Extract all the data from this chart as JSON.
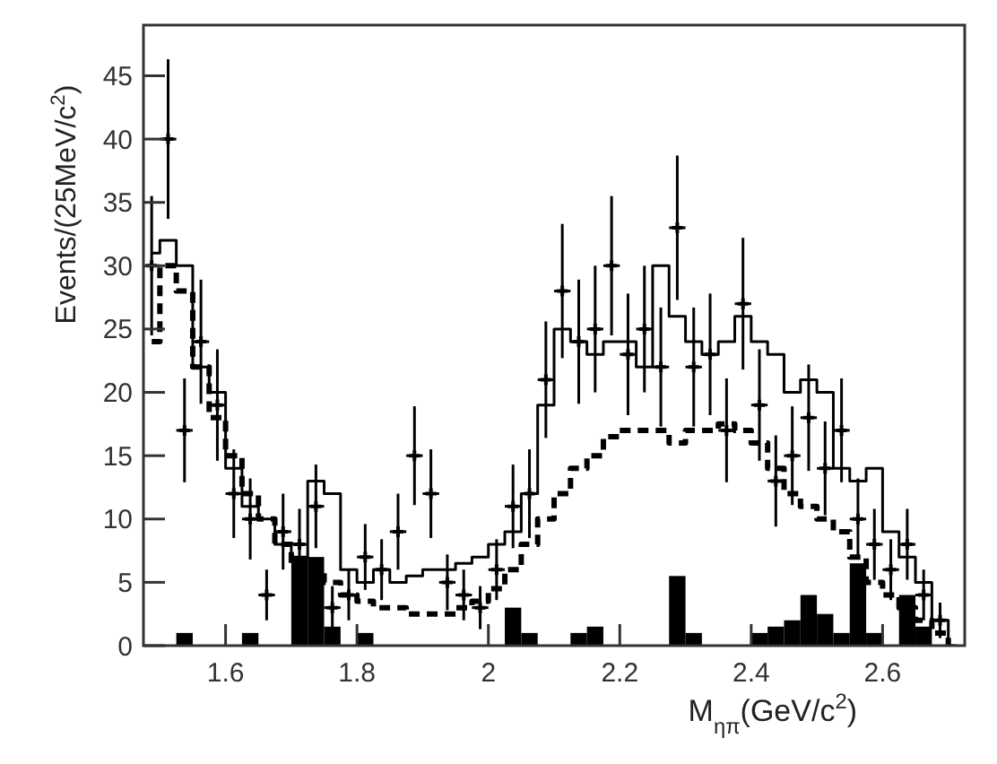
{
  "chart_data": {
    "type": "scatter",
    "xlabel": "M$_{ηπ}$(GeV/c$^{2}$)",
    "ylabel": "Events/(25MeV/c$^{2}$)",
    "xlim": [
      1.475,
      2.725
    ],
    "ylim": [
      0,
      49
    ],
    "xticks": [
      1.6,
      1.8,
      2,
      2.2,
      2.4,
      2.6
    ],
    "yticks": [
      0,
      5,
      10,
      15,
      20,
      25,
      30,
      35,
      40,
      45
    ],
    "grid": false,
    "x": [
      1.4875,
      1.5125,
      1.5375,
      1.5625,
      1.5875,
      1.6125,
      1.6375,
      1.6625,
      1.6875,
      1.7125,
      1.7375,
      1.7625,
      1.7875,
      1.8125,
      1.8375,
      1.8625,
      1.8875,
      1.9125,
      1.9375,
      1.9625,
      1.9875,
      2.0125,
      2.0375,
      2.0625,
      2.0875,
      2.1125,
      2.1375,
      2.1625,
      2.1875,
      2.2125,
      2.2375,
      2.2625,
      2.2875,
      2.3125,
      2.3375,
      2.3625,
      2.3875,
      2.4125,
      2.4375,
      2.4625,
      2.4875,
      2.5125,
      2.5375,
      2.5625,
      2.5875,
      2.6125,
      2.6375,
      2.6625,
      2.6875,
      2.7125
    ],
    "series": [
      {
        "type": "bar",
        "color": "#000000",
        "values": [
          0,
          0,
          1,
          0,
          0,
          0,
          1,
          0,
          0,
          7,
          7,
          1.5,
          0,
          1,
          0,
          0,
          0,
          0,
          0,
          0,
          0,
          0,
          3,
          1,
          0,
          0,
          1,
          1.5,
          0,
          0,
          0,
          0,
          5.5,
          1,
          0,
          0,
          0,
          1,
          1.5,
          2,
          4,
          2.5,
          1,
          6.5,
          1,
          0,
          4,
          1.5,
          0,
          0
        ]
      },
      {
        "type": "step",
        "color": "#000000",
        "line_style": "dashed",
        "values": [
          24,
          30,
          28,
          22,
          18,
          15,
          12,
          10,
          8,
          6,
          6,
          5,
          4,
          3.5,
          3,
          3,
          2.5,
          2.5,
          2.5,
          3,
          3.5,
          4.5,
          6,
          8,
          10,
          12,
          14,
          15,
          16.5,
          17,
          17,
          17,
          16,
          17,
          17,
          17.5,
          17,
          16,
          14,
          12,
          11,
          10,
          9,
          7,
          5,
          4,
          3,
          2,
          1,
          0
        ]
      },
      {
        "type": "step",
        "color": "#000000",
        "line_style": "solid",
        "values": [
          31,
          32,
          30,
          22,
          20,
          14,
          11,
          10,
          8,
          7,
          13,
          12,
          6,
          5,
          6,
          5,
          5.5,
          6,
          6,
          6.5,
          7,
          8,
          9,
          12,
          19,
          25,
          24,
          23,
          24,
          24,
          22,
          30,
          26,
          24,
          23,
          24,
          26,
          24,
          23,
          20,
          21,
          20,
          14,
          13,
          14,
          9,
          7,
          5,
          2,
          0
        ]
      },
      {
        "color": "#000000",
        "marker": "cross",
        "values": [
          30,
          40,
          17,
          24,
          19,
          12,
          10,
          4,
          9,
          8,
          11,
          3,
          4,
          7,
          6,
          9,
          15,
          12,
          5,
          4,
          3,
          6,
          11,
          12,
          21,
          28,
          24,
          25,
          30,
          23,
          25,
          22,
          33,
          22,
          23,
          17,
          27,
          19,
          13,
          15,
          18,
          14,
          17,
          10,
          8,
          6,
          8,
          4,
          2,
          null
        ],
        "errors": [
          5.5,
          6.3,
          4.1,
          4.9,
          4.4,
          3.5,
          3.2,
          2,
          3,
          2.8,
          3.3,
          1.7,
          2,
          2.6,
          2.4,
          3,
          3.9,
          3.5,
          2.2,
          2,
          1.7,
          2.4,
          3.3,
          3.5,
          4.6,
          5.3,
          4.9,
          5,
          5.5,
          4.8,
          5,
          4.7,
          5.7,
          4.7,
          4.8,
          4.1,
          5.2,
          4.4,
          3.6,
          3.9,
          4.2,
          3.7,
          4.1,
          3.2,
          2.8,
          2.4,
          2.8,
          2,
          1.4,
          null
        ],
        "xerrors": [
          0.0125,
          0.0125,
          0.0125,
          0.0125,
          0.0125,
          0.0125,
          0.0125,
          0.0125,
          0.0125,
          0.0125,
          0.0125,
          0.0125,
          0.0125,
          0.0125,
          0.0125,
          0.0125,
          0.0125,
          0.0125,
          0.0125,
          0.0125,
          0.0125,
          0.0125,
          0.0125,
          0.0125,
          0.0125,
          0.0125,
          0.0125,
          0.0125,
          0.0125,
          0.0125,
          0.0125,
          0.0125,
          0.0125,
          0.0125,
          0.0125,
          0.0125,
          0.0125,
          0.0125,
          0.0125,
          0.0125,
          0.0125,
          0.0125,
          0.0125,
          0.0125,
          0.0125,
          0.0125,
          0.0125,
          0.0125,
          0.0125,
          null
        ]
      }
    ]
  }
}
